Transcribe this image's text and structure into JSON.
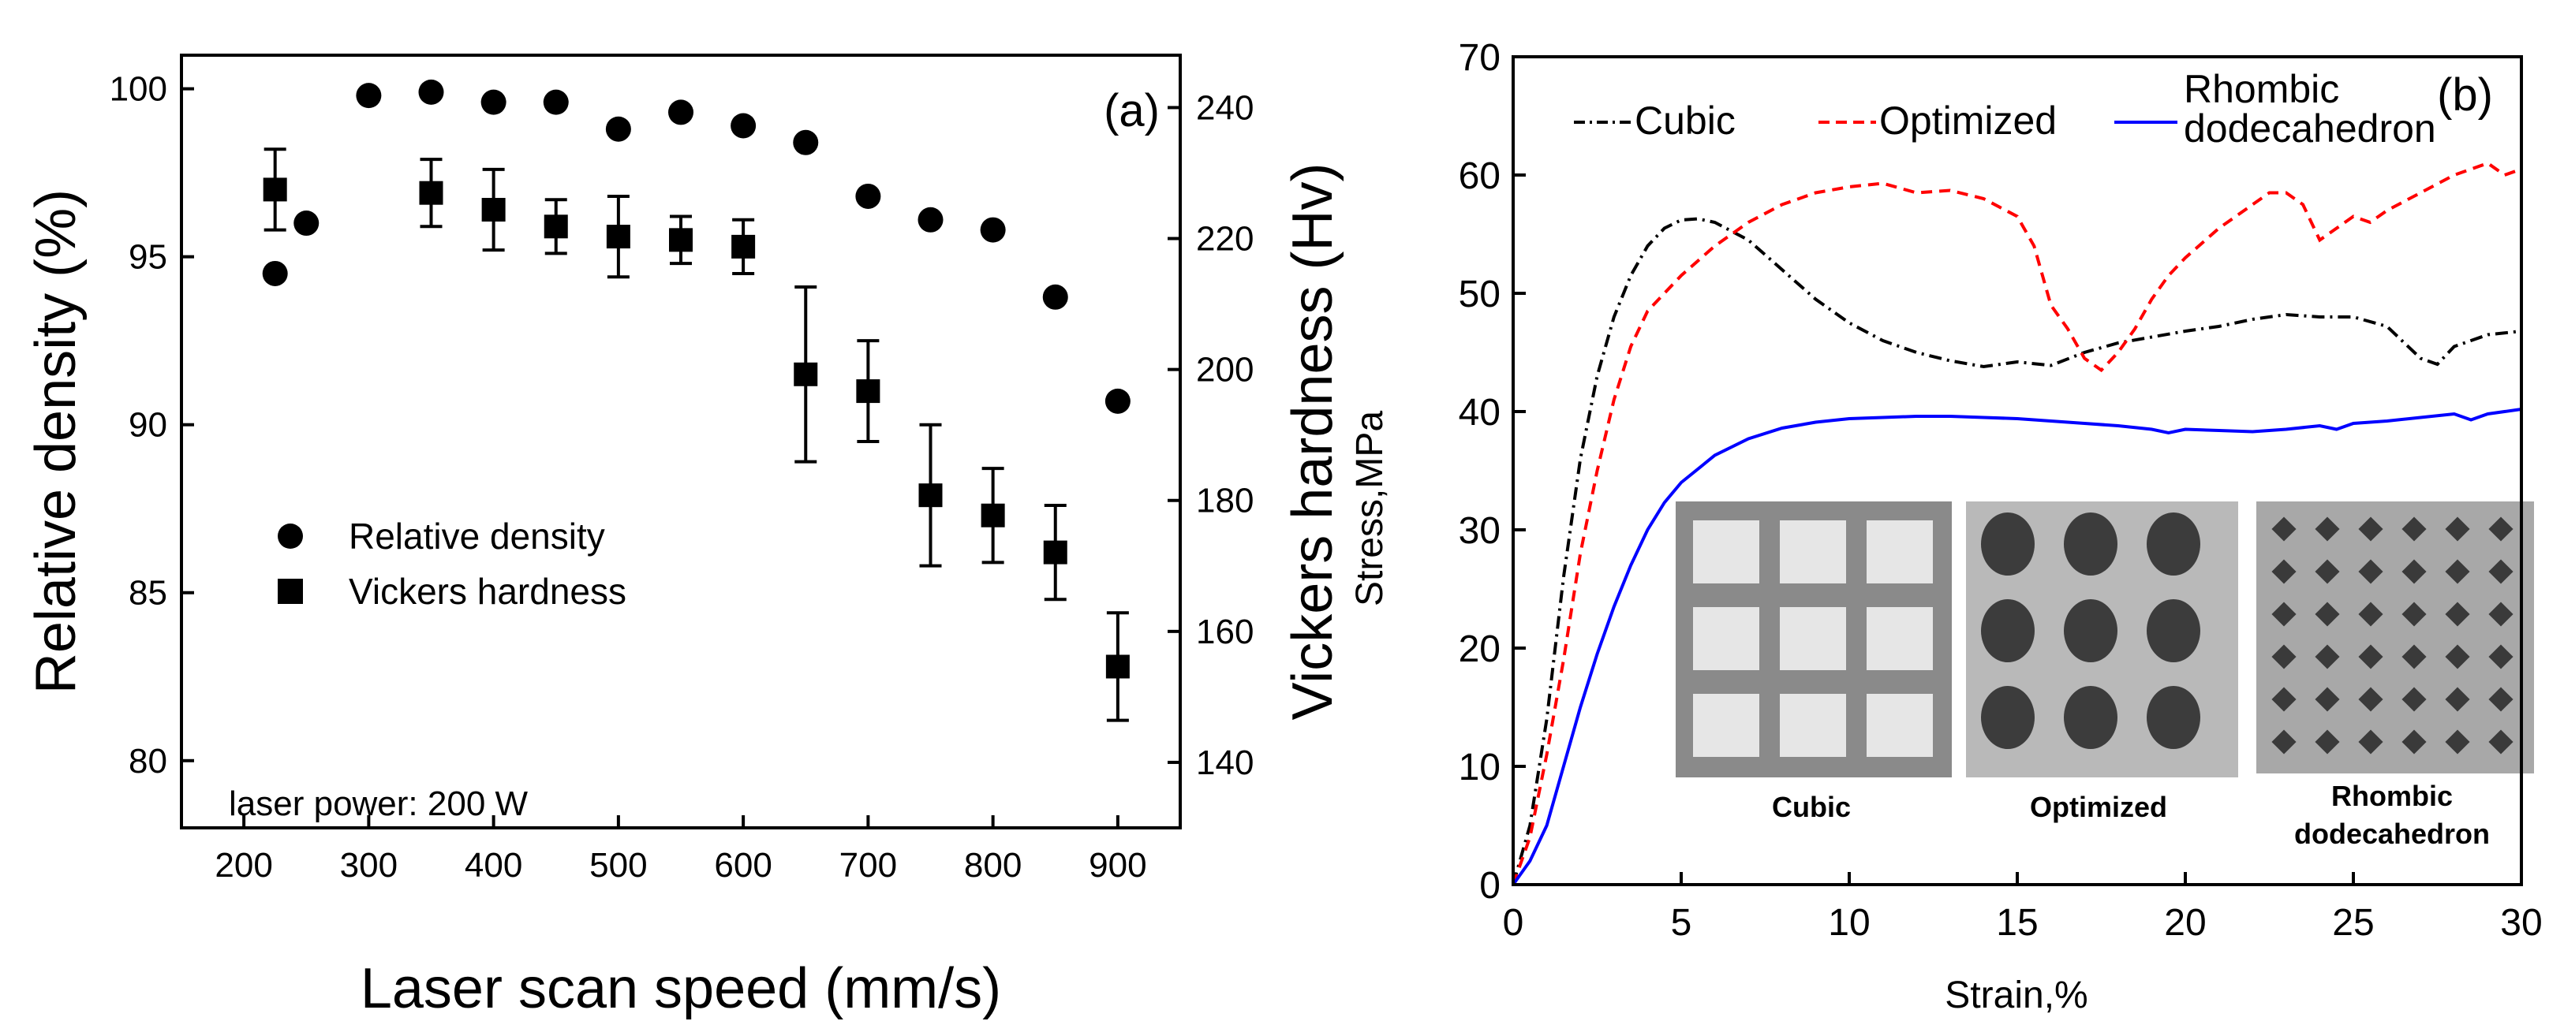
{
  "chart_data": [
    {
      "panel_label": "(a)",
      "type": "scatter",
      "xlabel": "Laser scan speed (mm/s)",
      "ylabel": "Relative density (%)",
      "y2label": "Vickers hardness (Hv)",
      "overlay_label": "Stress,MPa",
      "xlim": [
        150,
        950
      ],
      "ylim": [
        78,
        101
      ],
      "y2lim": [
        130,
        248
      ],
      "xticks": [
        200,
        300,
        400,
        500,
        600,
        700,
        800,
        900
      ],
      "yticks": [
        80,
        85,
        90,
        95,
        100
      ],
      "y2ticks": [
        140,
        160,
        180,
        200,
        220,
        240
      ],
      "annotation": "laser power: 200 W",
      "legend_position": "center-left",
      "series": [
        {
          "name": "Relative density",
          "marker": "circle",
          "axis": "left",
          "points": [
            [
              225,
              94.5
            ],
            [
              250,
              96.0
            ],
            [
              300,
              99.8
            ],
            [
              350,
              99.9
            ],
            [
              400,
              99.6
            ],
            [
              450,
              99.6
            ],
            [
              500,
              98.8
            ],
            [
              550,
              99.3
            ],
            [
              600,
              98.9
            ],
            [
              650,
              98.4
            ],
            [
              700,
              96.8
            ],
            [
              750,
              96.1
            ],
            [
              800,
              95.8
            ],
            [
              850,
              93.8
            ],
            [
              900,
              90.7
            ]
          ]
        },
        {
          "name": "Vickers hardness",
          "marker": "square",
          "axis": "left",
          "points": [
            [
              225,
              97.0
            ],
            [
              350,
              96.9
            ],
            [
              400,
              96.4
            ],
            [
              450,
              95.9
            ],
            [
              500,
              95.6
            ],
            [
              550,
              95.5
            ],
            [
              600,
              95.3
            ],
            [
              650,
              91.5
            ],
            [
              700,
              91.0
            ],
            [
              750,
              87.9
            ],
            [
              800,
              87.3
            ],
            [
              850,
              86.2
            ],
            [
              900,
              82.8
            ]
          ],
          "errors": [
            1.2,
            1.0,
            1.2,
            0.8,
            1.2,
            0.7,
            0.8,
            2.6,
            1.5,
            2.1,
            1.4,
            1.4,
            1.6
          ]
        }
      ]
    },
    {
      "panel_label": "(b)",
      "type": "line",
      "xlabel": "Strain,%",
      "ylabel": "",
      "xlim": [
        0,
        30
      ],
      "ylim": [
        0,
        70
      ],
      "xticks": [
        0,
        5,
        10,
        15,
        20,
        25,
        30
      ],
      "yticks": [
        0,
        10,
        20,
        30,
        40,
        50,
        60,
        70
      ],
      "legend_position": "top",
      "series": [
        {
          "name": "Cubic",
          "color": "#000000",
          "dash": "dash-dot",
          "points": [
            [
              0,
              0
            ],
            [
              0.5,
              5
            ],
            [
              1,
              14
            ],
            [
              1.5,
              26
            ],
            [
              2,
              36
            ],
            [
              2.5,
              43
            ],
            [
              3,
              48
            ],
            [
              3.5,
              51.5
            ],
            [
              4,
              54
            ],
            [
              4.5,
              55.5
            ],
            [
              5,
              56.2
            ],
            [
              5.5,
              56.3
            ],
            [
              6,
              56
            ],
            [
              7,
              54.5
            ],
            [
              8,
              52
            ],
            [
              9,
              49.5
            ],
            [
              10,
              47.5
            ],
            [
              11,
              46
            ],
            [
              12,
              45
            ],
            [
              13,
              44.3
            ],
            [
              14,
              43.8
            ],
            [
              15,
              44.2
            ],
            [
              16,
              43.9
            ],
            [
              17,
              45
            ],
            [
              18,
              45.8
            ],
            [
              19,
              46.3
            ],
            [
              20,
              46.8
            ],
            [
              21,
              47.2
            ],
            [
              22,
              47.8
            ],
            [
              23,
              48.2
            ],
            [
              24,
              48
            ],
            [
              25,
              48
            ],
            [
              26,
              47.2
            ],
            [
              27,
              44.5
            ],
            [
              27.5,
              44
            ],
            [
              28,
              45.5
            ],
            [
              29,
              46.5
            ],
            [
              30,
              46.8
            ]
          ]
        },
        {
          "name": "Optimized",
          "color": "#ff0000",
          "dash": "dashed",
          "points": [
            [
              0,
              0
            ],
            [
              0.5,
              4
            ],
            [
              1,
              11
            ],
            [
              1.5,
              19
            ],
            [
              2,
              28
            ],
            [
              2.5,
              35
            ],
            [
              3,
              41
            ],
            [
              3.5,
              45.5
            ],
            [
              4,
              48.5
            ],
            [
              5,
              51.5
            ],
            [
              6,
              54
            ],
            [
              7,
              56
            ],
            [
              8,
              57.5
            ],
            [
              9,
              58.5
            ],
            [
              10,
              59
            ],
            [
              11,
              59.3
            ],
            [
              12,
              58.5
            ],
            [
              13,
              58.7
            ],
            [
              14,
              58
            ],
            [
              15,
              56.5
            ],
            [
              15.5,
              54
            ],
            [
              16,
              49
            ],
            [
              16.5,
              47
            ],
            [
              17,
              44.5
            ],
            [
              17.5,
              43.5
            ],
            [
              18,
              45
            ],
            [
              18.5,
              47
            ],
            [
              19,
              49.5
            ],
            [
              19.5,
              51.5
            ],
            [
              20,
              53
            ],
            [
              21,
              55.5
            ],
            [
              22,
              57.5
            ],
            [
              22.5,
              58.5
            ],
            [
              23,
              58.5
            ],
            [
              23.5,
              57.5
            ],
            [
              24,
              54.5
            ],
            [
              24.5,
              55.5
            ],
            [
              25,
              56.5
            ],
            [
              25.5,
              56
            ],
            [
              26,
              57
            ],
            [
              27,
              58.5
            ],
            [
              28,
              60
            ],
            [
              28.5,
              60.5
            ],
            [
              29,
              61
            ],
            [
              29.5,
              60
            ],
            [
              30,
              60.5
            ]
          ]
        },
        {
          "name": "Rhombic\ndodecahedron",
          "color": "#0000ff",
          "dash": "solid",
          "points": [
            [
              0,
              0
            ],
            [
              0.5,
              2
            ],
            [
              1,
              5
            ],
            [
              1.5,
              10
            ],
            [
              2,
              15
            ],
            [
              2.5,
              19.5
            ],
            [
              3,
              23.5
            ],
            [
              3.5,
              27
            ],
            [
              4,
              30
            ],
            [
              4.5,
              32.3
            ],
            [
              5,
              34
            ],
            [
              6,
              36.3
            ],
            [
              7,
              37.7
            ],
            [
              8,
              38.6
            ],
            [
              9,
              39.1
            ],
            [
              10,
              39.4
            ],
            [
              11,
              39.5
            ],
            [
              12,
              39.6
            ],
            [
              13,
              39.6
            ],
            [
              14,
              39.5
            ],
            [
              15,
              39.4
            ],
            [
              16,
              39.2
            ],
            [
              17,
              39
            ],
            [
              18,
              38.8
            ],
            [
              19,
              38.5
            ],
            [
              19.5,
              38.2
            ],
            [
              20,
              38.5
            ],
            [
              21,
              38.4
            ],
            [
              22,
              38.3
            ],
            [
              23,
              38.5
            ],
            [
              24,
              38.8
            ],
            [
              24.5,
              38.5
            ],
            [
              25,
              39
            ],
            [
              26,
              39.2
            ],
            [
              27,
              39.5
            ],
            [
              28,
              39.8
            ],
            [
              28.5,
              39.3
            ],
            [
              29,
              39.8
            ],
            [
              30,
              40.2
            ]
          ]
        }
      ],
      "insets": [
        {
          "name": "cubic",
          "label": "Cubic"
        },
        {
          "name": "optimized",
          "label": "Optimized"
        },
        {
          "name": "rhombic",
          "label": "Rhombic\ndodecahedron"
        }
      ]
    }
  ]
}
